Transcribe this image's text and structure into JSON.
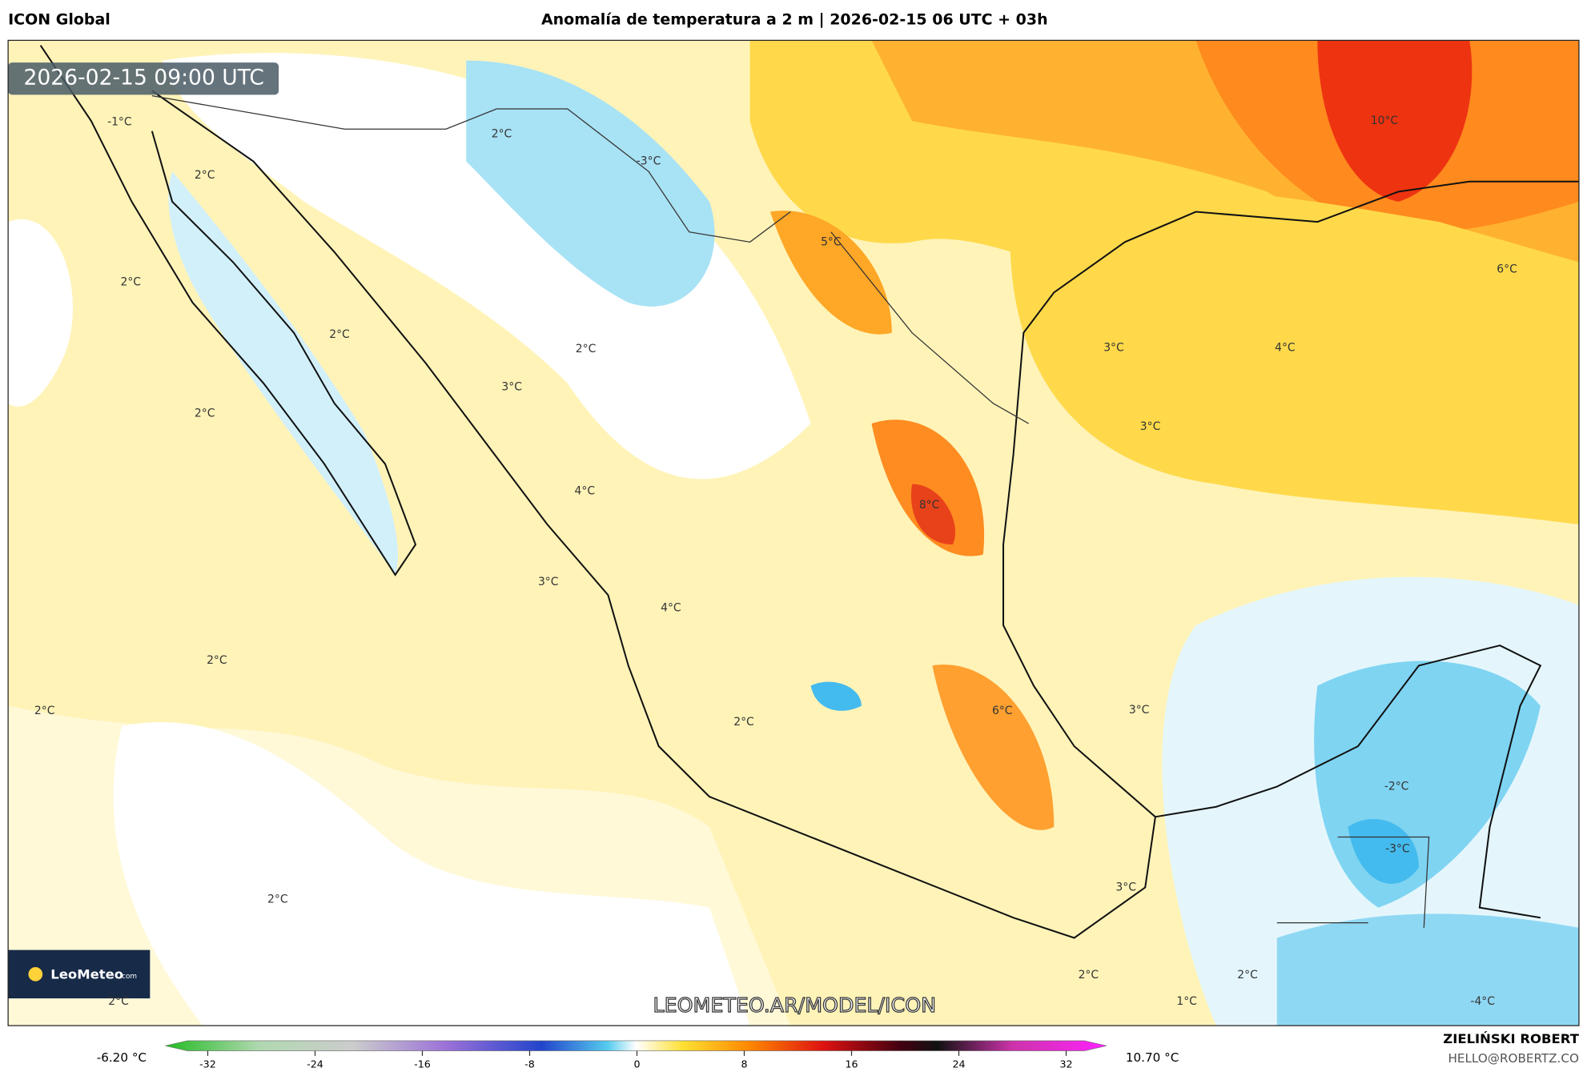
{
  "header": {
    "model": "ICON Global",
    "title": "Anomalía de temperatura a 2 m | 2026-02-15 06 UTC + 03h"
  },
  "map": {
    "timestamp": "2026-02-15 09:00 UTC",
    "watermark": "LEOMETEO.AR/MODEL/ICON",
    "logo": {
      "name": "LeoMeteo",
      "suffix": ".com"
    },
    "contour_labels": [
      "-1°C",
      "2°C",
      "2°C",
      "2°C",
      "2°C",
      "3°C",
      "2°C",
      "2°C",
      "-3°C",
      "5°C",
      "10°C",
      "6°C",
      "3°C",
      "4°C",
      "3°C",
      "8°C",
      "4°C",
      "3°C",
      "4°C",
      "2°C",
      "2°C",
      "2°C",
      "6°C",
      "3°C",
      "-2°C",
      "-3°C",
      "3°C",
      "2°C",
      "2°C",
      "2°C",
      "1°C",
      "2°C",
      "-4°C"
    ]
  },
  "colorbar": {
    "min_label": "-6.20 °C",
    "max_label": "10.70 °C",
    "ticks": [
      -32,
      -24,
      -16,
      -8,
      0,
      8,
      16,
      24,
      32
    ]
  },
  "footer": {
    "author": "ZIELIŃSKI ROBERT",
    "email": "HELLO@ROBERTZ.CO"
  }
}
